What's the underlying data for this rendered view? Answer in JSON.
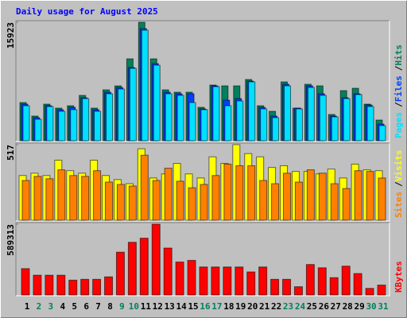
{
  "chart_data": [
    {
      "type": "bar",
      "title": "Daily usage for August 2025",
      "categories": [
        "1",
        "2",
        "3",
        "4",
        "5",
        "6",
        "7",
        "8",
        "9",
        "10",
        "11",
        "12",
        "13",
        "14",
        "15",
        "16",
        "17",
        "18",
        "19",
        "20",
        "21",
        "22",
        "23",
        "24",
        "25",
        "26",
        "27",
        "28",
        "29",
        "30",
        "31"
      ],
      "category_colors": [
        "#000000",
        "#00805c",
        "#00805c",
        "#000000",
        "#000000",
        "#000000",
        "#000000",
        "#000000",
        "#00805c",
        "#00805c",
        "#000000",
        "#000000",
        "#000000",
        "#000000",
        "#000000",
        "#00805c",
        "#00805c",
        "#000000",
        "#000000",
        "#000000",
        "#000000",
        "#000000",
        "#00805c",
        "#00805c",
        "#000000",
        "#000000",
        "#000000",
        "#000000",
        "#000000",
        "#00805c",
        "#00805c"
      ],
      "ylim": [
        0,
        15923
      ],
      "yticks": [
        15923
      ],
      "legend_separator": "/",
      "series": [
        {
          "name": "Hits",
          "color": "#00805c",
          "values": [
            5130,
            3313,
            4916,
            4382,
            4702,
            6092,
            4382,
            6840,
            7374,
            11008,
            15923,
            11008,
            6840,
            6519,
            6519,
            4489,
            7481,
            7374,
            7374,
            8229,
            4702,
            3954,
            7908,
            4382,
            7588,
            7374,
            3527,
            6733,
            7053,
            4916,
            2779
          ]
        },
        {
          "name": "Files",
          "color": "#0040ff",
          "values": [
            4916,
            3099,
            4702,
            4168,
            4489,
            5771,
            4168,
            6519,
            7160,
            9832,
            15069,
            10366,
            6519,
            6305,
            6305,
            4275,
            7374,
            5450,
            5664,
            8015,
            4489,
            3313,
            7588,
            4382,
            7374,
            6305,
            3313,
            5771,
            6305,
            4809,
            2244
          ]
        },
        {
          "name": "Pages",
          "color": "#00e0ff",
          "values": [
            4702,
            2885,
            4595,
            3954,
            4168,
            5664,
            3954,
            6305,
            6947,
            9725,
            14855,
            10153,
            6305,
            6092,
            5130,
            4168,
            7267,
            4702,
            5344,
            7908,
            4275,
            3099,
            7374,
            4275,
            7160,
            6092,
            3206,
            5664,
            6198,
            4595,
            2031
          ]
        }
      ]
    },
    {
      "type": "bar",
      "ylim": [
        0,
        517
      ],
      "yticks": [
        517
      ],
      "legend_separator": "/",
      "series": [
        {
          "name": "Visits",
          "color": "#ffff00",
          "values": [
            306,
            322,
            306,
            411,
            339,
            322,
            411,
            306,
            278,
            250,
            489,
            289,
            317,
            389,
            317,
            289,
            434,
            389,
            517,
            456,
            434,
            361,
            373,
            334,
            334,
            317,
            350,
            289,
            384,
            345,
            339
          ]
        },
        {
          "name": "Sites",
          "color": "#ff8000",
          "values": [
            272,
            300,
            284,
            345,
            306,
            300,
            339,
            261,
            245,
            234,
            445,
            272,
            356,
            267,
            222,
            245,
            306,
            384,
            373,
            373,
            272,
            250,
            322,
            261,
            345,
            322,
            250,
            217,
            339,
            334,
            289
          ]
        }
      ]
    },
    {
      "type": "bar",
      "ylim": [
        0,
        589313
      ],
      "yticks": [
        589313
      ],
      "series": [
        {
          "name": "KBytes",
          "color": "#ff0000",
          "values": [
            219296,
            164472,
            164472,
            164472,
            123354,
            130207,
            130207,
            150766,
            356356,
            438592,
            472857,
            589313,
            390621,
            274120,
            287826,
            233002,
            233002,
            233002,
            233002,
            191884,
            233002,
            130207,
            130207,
            68530,
            253561,
            226149,
            143913,
            239855,
            178178,
            54824,
            82236
          ]
        }
      ]
    }
  ]
}
